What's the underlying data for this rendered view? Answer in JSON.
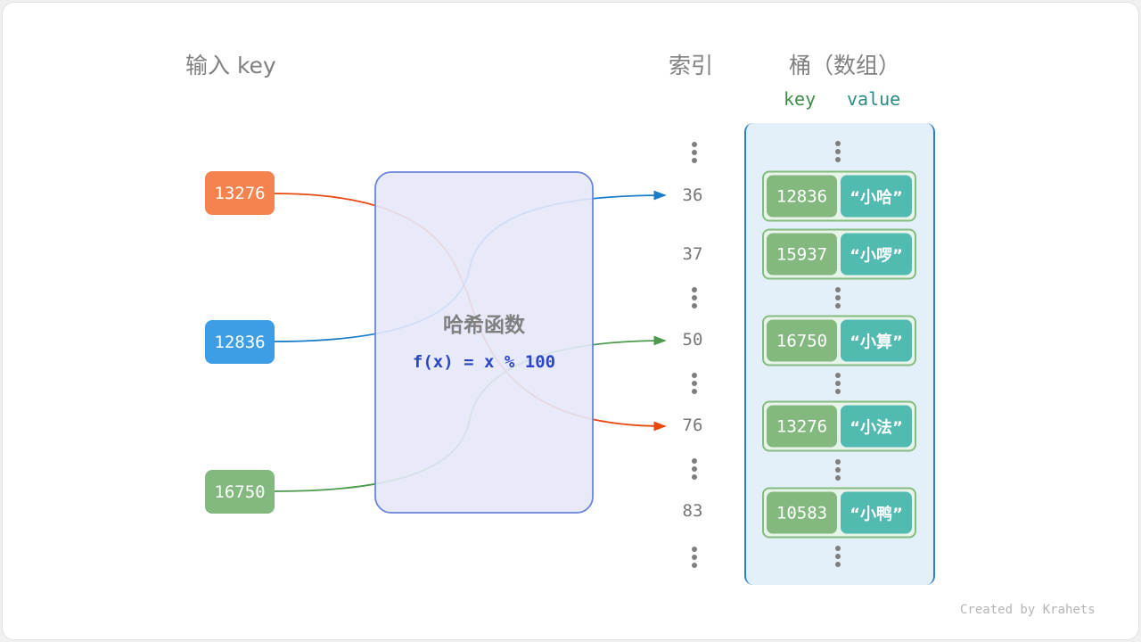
{
  "headers": {
    "input": "输入 key",
    "index": "索引",
    "bucket": "桶（数组）",
    "key": "key",
    "value": "value"
  },
  "inputs": [
    {
      "key": "13276",
      "color": "#f5834f",
      "line_color": "#e8480e",
      "target_index": "76"
    },
    {
      "key": "12836",
      "color": "#3d9ee6",
      "line_color": "#1a7cc8",
      "target_index": "36"
    },
    {
      "key": "16750",
      "color": "#83b87f",
      "line_color": "#4d9a4d",
      "target_index": "50"
    }
  ],
  "hash_function": {
    "title": "哈希函数",
    "formula": "f(x) = x % 100"
  },
  "indices": [
    "36",
    "37",
    "50",
    "76",
    "83"
  ],
  "buckets": [
    {
      "index": "36",
      "key": "12836",
      "value": "“小哈”"
    },
    {
      "index": "37",
      "key": "15937",
      "value": "“小啰”"
    },
    {
      "index": "50",
      "key": "16750",
      "value": "“小算”"
    },
    {
      "index": "76",
      "key": "13276",
      "value": "“小法”"
    },
    {
      "index": "83",
      "key": "10583",
      "value": "“小鸭”"
    }
  ],
  "watermark": "Created by Krahets"
}
